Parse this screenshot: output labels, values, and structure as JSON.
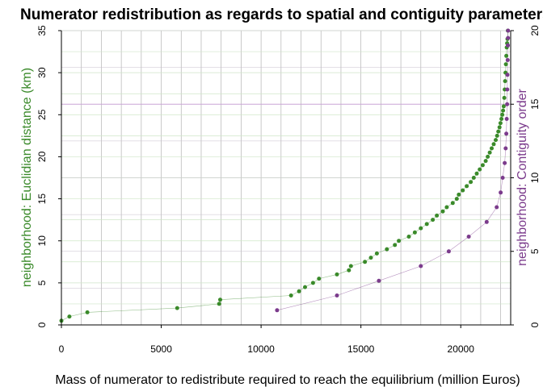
{
  "chart_data": {
    "type": "scatter",
    "title": "Numerator redistribution as regards to spatial and contiguity parameters",
    "xlabel": "Mass of numerator to redistribute required to reach the equilibrium (million Euros)",
    "ylabel_left": "neighborhood: Euclidian distance (km)",
    "ylabel_right": "neighborhood: Contiguity order",
    "xlim": [
      0,
      22500
    ],
    "ylim_left": [
      0,
      35
    ],
    "ylim_right": [
      0,
      20
    ],
    "x_ticks": [
      "0",
      "5000",
      "10000",
      "15000",
      "20000"
    ],
    "y_left_ticks": [
      "0",
      "5",
      "10",
      "15",
      "20",
      "25",
      "30",
      "35"
    ],
    "y_right_ticks": [
      "0",
      "5",
      "10",
      "15",
      "20"
    ],
    "grid": true,
    "colors": {
      "distance": "#3a8a2a",
      "contiguity": "#7b3b8c",
      "axis_box": "#000000"
    },
    "series": [
      {
        "axis": "left",
        "color": "#3a8a2a",
        "x": [
          0,
          400,
          1300,
          5800,
          7900,
          7950,
          11500,
          11900,
          12200,
          12600,
          12900,
          13800,
          14400,
          14500,
          15200,
          15500,
          15800,
          16300,
          16700,
          16900,
          17400,
          17700,
          18000,
          18300,
          18600,
          18800,
          19100,
          19300,
          19600,
          19800,
          19900,
          20100,
          20300,
          20500,
          20650,
          20800,
          20950,
          21100,
          21250,
          21350,
          21450,
          21550,
          21650,
          21750,
          21820,
          21880,
          21940,
          21990,
          22040,
          22080,
          22120,
          22150,
          22180,
          22200,
          22220,
          22240,
          22260,
          22280,
          22300,
          22320,
          22340,
          22360
        ],
        "y": [
          0.5,
          1,
          1.5,
          2,
          2.5,
          3,
          3.5,
          4,
          4.5,
          5,
          5.5,
          6,
          6.5,
          7,
          7.5,
          8,
          8.5,
          9,
          9.5,
          10,
          10.5,
          11,
          11.5,
          12,
          12.5,
          13,
          13.5,
          14,
          14.5,
          15,
          15.5,
          16,
          16.5,
          17,
          17.5,
          18,
          18.5,
          19,
          19.5,
          20,
          20.5,
          21,
          21.5,
          22,
          22.5,
          23,
          23.5,
          24,
          24.5,
          25,
          25.5,
          26,
          27,
          28,
          29,
          30,
          31,
          32,
          33,
          33.5,
          34,
          35
        ]
      },
      {
        "axis": "right",
        "color": "#7b3b8c",
        "x": [
          10800,
          13800,
          15900,
          18000,
          19400,
          20400,
          21300,
          21800,
          22000,
          22100,
          22200,
          22250,
          22280,
          22300,
          22320,
          22330,
          22340,
          22350,
          22360,
          22365,
          22370
        ],
        "y": [
          1,
          2,
          3,
          4,
          5,
          6,
          7,
          8,
          9,
          10,
          11,
          12,
          13,
          14,
          15,
          16,
          17,
          18,
          19,
          19.5,
          20
        ]
      }
    ]
  }
}
